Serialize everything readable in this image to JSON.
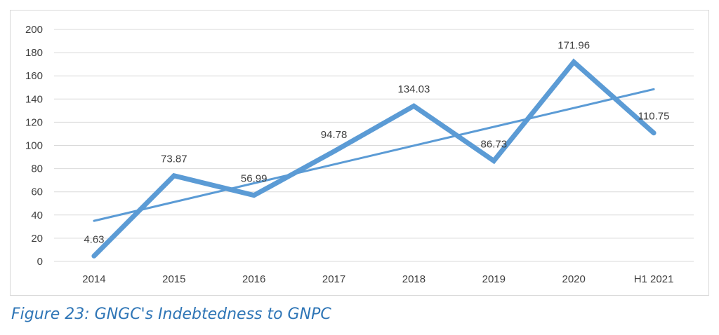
{
  "caption": "Figure 23: GNGC's Indebtedness to GNPC",
  "chart_data": {
    "type": "line",
    "categories": [
      "2014",
      "2015",
      "2016",
      "2017",
      "2018",
      "2019",
      "2020",
      "H1 2021"
    ],
    "series": [
      {
        "values": [
          4.63,
          73.87,
          56.99,
          94.78,
          134.03,
          86.73,
          171.96,
          110.75
        ],
        "data_labels": [
          "4.63",
          "73.87",
          "56.99",
          "94.78",
          "134.03",
          "86.73",
          "171.96",
          "110.75"
        ],
        "color": "#5b9bd5"
      }
    ],
    "trendline": {
      "type": "linear",
      "color": "#5b9bd5"
    },
    "ylim": [
      0,
      200
    ],
    "yticks": [
      "0",
      "20",
      "40",
      "60",
      "80",
      "100",
      "120",
      "140",
      "160",
      "180",
      "200"
    ],
    "grid": true,
    "gridline_color": "#d9d9d9",
    "legend": "none"
  }
}
